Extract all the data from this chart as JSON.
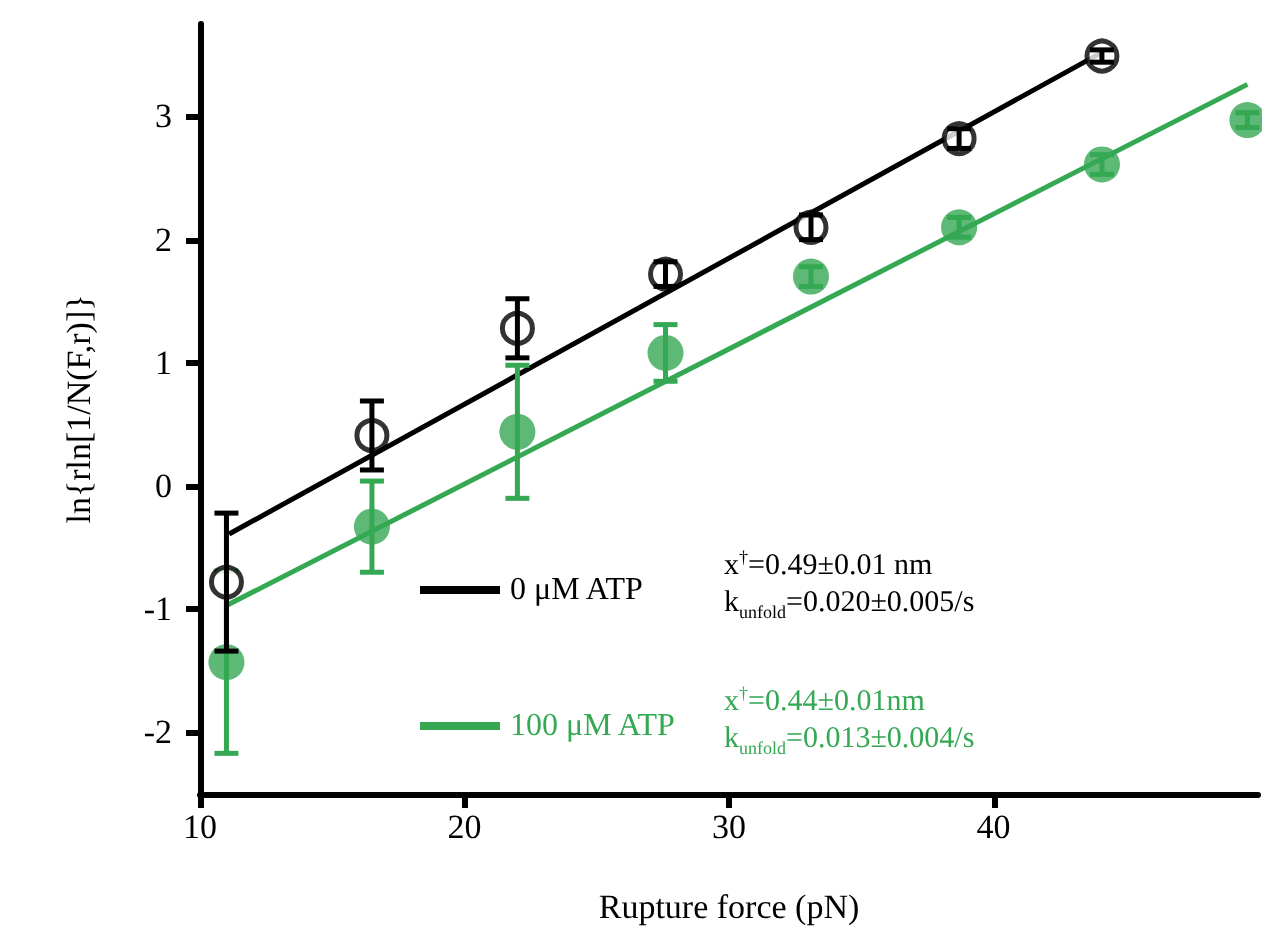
{
  "chart_data": {
    "type": "scatter",
    "xlabel": "Rupture force (pN)",
    "ylabel": "ln{rln[1/N(F,r)]}",
    "xlim": [
      10,
      50
    ],
    "xticks": [
      10,
      20,
      30,
      40
    ],
    "ylim": [
      -2.5,
      3.75
    ],
    "yticks": [
      -2,
      -1,
      0,
      1,
      2,
      3
    ],
    "grid": false,
    "legend": "center",
    "series": [
      {
        "marker": "circle",
        "color": "#000000",
        "x": [
          11,
          16.5,
          22,
          27.6,
          33.1,
          38.7,
          44.1
        ],
        "values": [
          -0.78,
          0.41,
          1.28,
          1.72,
          2.1,
          2.82,
          3.49
        ],
        "errors": [
          0.56,
          0.28,
          0.24,
          0.1,
          0.1,
          0.08,
          0.05
        ]
      },
      {
        "marker": "circle",
        "color": "#34a853",
        "x": [
          11,
          16.5,
          22,
          27.6,
          33.1,
          38.7,
          44.1,
          49.6
        ],
        "values": [
          -1.43,
          -0.33,
          0.44,
          1.08,
          1.7,
          2.1,
          2.61,
          2.97
        ],
        "errors": [
          0.74,
          0.37,
          0.54,
          0.23,
          0.08,
          0.08,
          0.08,
          0.06
        ]
      },
      {
        "type": "line",
        "marker": "none",
        "name": "0 μM ATP",
        "color": "#000000",
        "x": [
          11.1,
          44.1
        ],
        "values": [
          -0.39,
          3.52
        ]
      },
      {
        "type": "line",
        "marker": "none",
        "name": "100 μM ATP",
        "color": "#34a853",
        "x": [
          11,
          49.6
        ],
        "values": [
          -0.97,
          3.26
        ]
      }
    ],
    "annotations": [
      "x$^{†}$=0.49±0.01 nm",
      "k$_{unfold}$=0.020±0.005/s",
      "x$^{†}$=0.44±0.01nm",
      "k$_{unfold}$=0.013±0.004/s"
    ]
  }
}
